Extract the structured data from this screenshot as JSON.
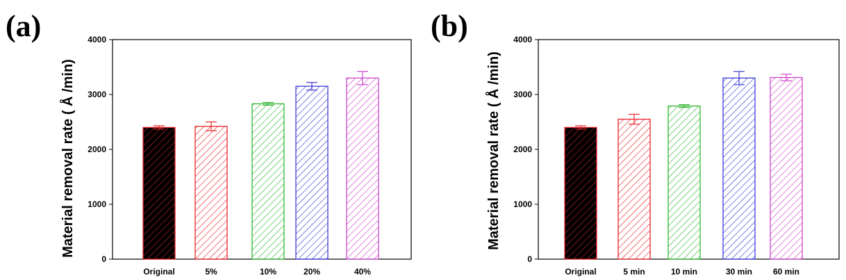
{
  "chart_data": [
    {
      "type": "bar",
      "panel_label": "(a)",
      "ylabel": "Material removal rate ( Å /min)",
      "xlabel": "",
      "categories": [
        "Original",
        "5%",
        "10%",
        "20%",
        "40%"
      ],
      "values": [
        2400,
        2420,
        2830,
        3150,
        3300
      ],
      "errors": [
        30,
        80,
        25,
        70,
        120
      ],
      "colors": [
        "#e8242b",
        "#e8242b",
        "#2fb52f",
        "#3b3bd6",
        "#cc44cc"
      ],
      "fills": [
        "solid-black-hatched",
        "hatched",
        "hatched",
        "hatched",
        "hatched"
      ],
      "ylim": [
        0,
        4000
      ],
      "yticks": [
        0,
        1000,
        2000,
        3000,
        4000
      ],
      "grid": false
    },
    {
      "type": "bar",
      "panel_label": "(b)",
      "ylabel": "Material removal rate ( Å /min)",
      "xlabel": "",
      "categories": [
        "Original",
        "5 min",
        "10 min",
        "30 min",
        "60 min"
      ],
      "values": [
        2400,
        2550,
        2790,
        3300,
        3310
      ],
      "errors": [
        30,
        90,
        25,
        120,
        60
      ],
      "colors": [
        "#e8242b",
        "#e8242b",
        "#2fb52f",
        "#3b3bd6",
        "#cc44cc"
      ],
      "fills": [
        "solid-black-hatched",
        "hatched",
        "hatched",
        "hatched",
        "hatched"
      ],
      "ylim": [
        0,
        4000
      ],
      "yticks": [
        0,
        1000,
        2000,
        3000,
        4000
      ],
      "grid": false
    }
  ]
}
